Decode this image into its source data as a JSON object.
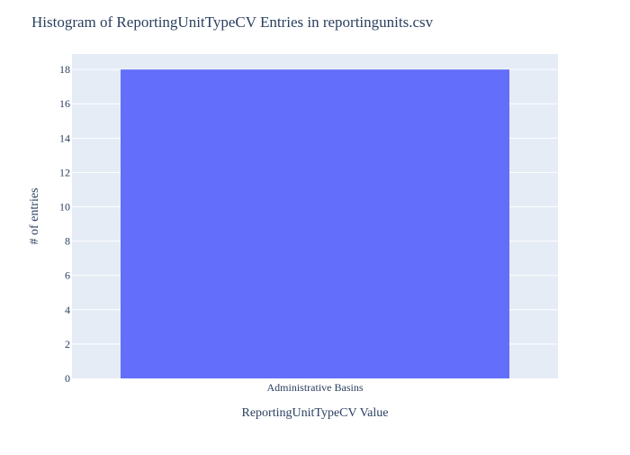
{
  "chart_data": {
    "type": "bar",
    "title": "Histogram of ReportingUnitTypeCV Entries in reportingunits.csv",
    "xlabel": "ReportingUnitTypeCV Value",
    "ylabel": "# of entries",
    "categories": [
      "Administrative Basins"
    ],
    "series": [
      {
        "values": [
          18
        ]
      }
    ],
    "ylim": [
      0,
      18.9
    ],
    "yticks": [
      0,
      2,
      4,
      6,
      8,
      10,
      12,
      14,
      16,
      18
    ],
    "grid": true,
    "bar_color": "#636efa",
    "plot_bg": "#e5ecf6",
    "grid_color": "#ffffff"
  }
}
